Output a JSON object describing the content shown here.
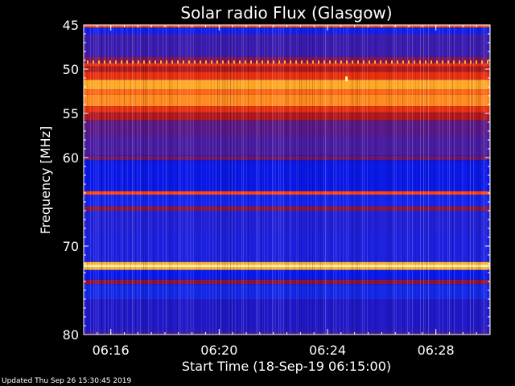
{
  "chart_data": {
    "type": "heatmap",
    "title": "Solar radio Flux (Glasgow)",
    "xlabel": "Start Time (18-Sep-19 06:15:00)",
    "ylabel": "Frequency [MHz]",
    "x_range_minutes": [
      0,
      15
    ],
    "x_ticks": [
      {
        "minute": 1,
        "label": "06:16"
      },
      {
        "minute": 5,
        "label": "06:20"
      },
      {
        "minute": 9,
        "label": "06:24"
      },
      {
        "minute": 13,
        "label": "06:28"
      }
    ],
    "y_range_mhz": [
      45,
      80
    ],
    "y_ticks": [
      {
        "value": 45,
        "label": "45"
      },
      {
        "value": 50,
        "label": "50"
      },
      {
        "value": 55,
        "label": "55"
      },
      {
        "value": 60,
        "label": "60"
      },
      {
        "value": 70,
        "label": "70"
      },
      {
        "value": 80,
        "label": "80"
      }
    ],
    "frequency_bands": [
      {
        "from": 45.0,
        "to": 45.3,
        "color": "#ff5010"
      },
      {
        "from": 45.3,
        "to": 46.0,
        "color": "#1020ee"
      },
      {
        "from": 46.0,
        "to": 48.6,
        "color": "#3a1cb0"
      },
      {
        "from": 48.6,
        "to": 49.3,
        "color": "#7a1560"
      },
      {
        "from": 49.3,
        "to": 49.7,
        "color": "#e83010"
      },
      {
        "from": 49.7,
        "to": 50.3,
        "color": "#b01820"
      },
      {
        "from": 50.3,
        "to": 51.2,
        "color": "#e83010"
      },
      {
        "from": 51.2,
        "to": 52.3,
        "color": "#ffa828"
      },
      {
        "from": 52.3,
        "to": 52.9,
        "color": "#ff6818"
      },
      {
        "from": 52.9,
        "to": 54.2,
        "color": "#ff8a20"
      },
      {
        "from": 54.2,
        "to": 54.9,
        "color": "#e83010"
      },
      {
        "from": 54.9,
        "to": 55.8,
        "color": "#b01820"
      },
      {
        "from": 55.8,
        "to": 57.5,
        "color": "#5a1888"
      },
      {
        "from": 57.5,
        "to": 59.8,
        "color": "#4a1ca0"
      },
      {
        "from": 59.8,
        "to": 60.3,
        "color": "#6a1670"
      },
      {
        "from": 60.3,
        "to": 63.8,
        "color": "#0a18e8"
      },
      {
        "from": 63.8,
        "to": 64.2,
        "color": "#ff4418"
      },
      {
        "from": 64.2,
        "to": 65.5,
        "color": "#1424ee"
      },
      {
        "from": 65.5,
        "to": 66.0,
        "color": "#8a1440"
      },
      {
        "from": 66.0,
        "to": 68.5,
        "color": "#2020d8"
      },
      {
        "from": 68.5,
        "to": 71.8,
        "color": "#1c20e0"
      },
      {
        "from": 71.8,
        "to": 72.1,
        "color": "#ffb030"
      },
      {
        "from": 72.1,
        "to": 72.4,
        "color": "#fff0a0"
      },
      {
        "from": 72.4,
        "to": 72.7,
        "color": "#ffb030"
      },
      {
        "from": 72.7,
        "to": 73.8,
        "color": "#0a18ee"
      },
      {
        "from": 73.8,
        "to": 74.3,
        "color": "#8a1440"
      },
      {
        "from": 74.3,
        "to": 76.0,
        "color": "#1428e8"
      },
      {
        "from": 76.0,
        "to": 79.5,
        "color": "#2018c8"
      },
      {
        "from": 79.5,
        "to": 80.0,
        "color": "#3a18a8"
      }
    ],
    "spike_frequency_mhz": 49.2,
    "spike_color": "#ffb030",
    "burst_point": {
      "minute": 9.7,
      "mhz": 51.1,
      "color": "#ffff80"
    }
  },
  "colors": {
    "background": "#000000",
    "axis": "#ffffff",
    "text": "#ffffff"
  },
  "footer": {
    "updated": "Updated Thu Sep 26 15:30:45 2019"
  }
}
